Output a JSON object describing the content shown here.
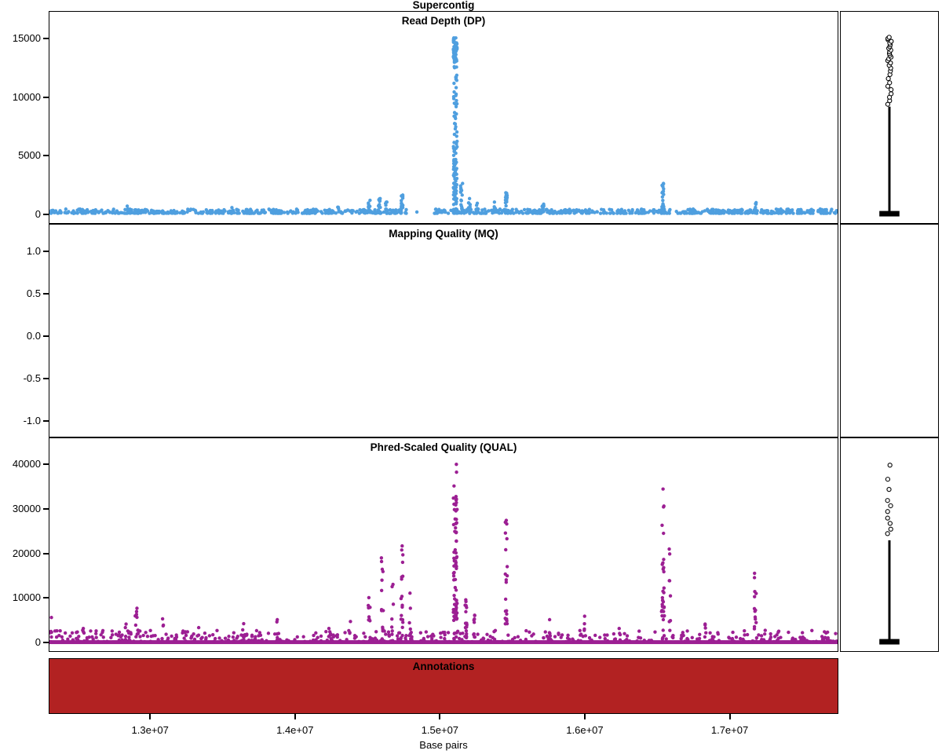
{
  "chart_meta": {
    "main_title": "Supercontig",
    "x_axis_label": "Base pairs",
    "background": "#ffffff"
  },
  "axis": {
    "x": {
      "xlim": [
        12300000,
        17750000
      ],
      "ticks": [
        13000000,
        14000000,
        15000000,
        16000000,
        17000000
      ],
      "tick_labels": [
        "1.3e+07",
        "1.4e+07",
        "1.5e+07",
        "1.6e+07",
        "1.7e+07"
      ]
    }
  },
  "annotations_panel": {
    "title": "Annotations",
    "color": "#b22222"
  },
  "chart_data": [
    {
      "id": "dp",
      "type": "scatter",
      "title": "Read Depth (DP)",
      "color": "#4f9fdf",
      "seed": 11,
      "ylim": [
        0,
        15600
      ],
      "yticks": [
        0,
        5000,
        10000,
        15000
      ],
      "ytick_labels": [
        "0",
        "5000",
        "10000",
        "15000"
      ],
      "baseline": {
        "n": 980,
        "ymin": 30,
        "ymax": 400,
        "gaps": [
          [
            14770000,
            14960000
          ]
        ]
      },
      "peaks": [
        {
          "x": 12842000,
          "ymax": 650,
          "n": 5
        },
        {
          "x": 13560000,
          "ymax": 520,
          "n": 4
        },
        {
          "x": 14294000,
          "ymax": 560,
          "n": 4
        },
        {
          "x": 14510000,
          "ymax": 1150,
          "n": 12
        },
        {
          "x": 14581000,
          "ymax": 1300,
          "n": 13
        },
        {
          "x": 14630000,
          "ymax": 1000,
          "n": 8
        },
        {
          "x": 14738000,
          "ymax": 1600,
          "n": 16
        },
        {
          "x": 15106000,
          "ymax": 15100,
          "n": 170,
          "dense": true,
          "spread": 26000
        },
        {
          "x": 15150000,
          "ymax": 2600,
          "n": 18
        },
        {
          "x": 15204000,
          "ymax": 1300,
          "n": 10
        },
        {
          "x": 15258000,
          "ymax": 900,
          "n": 7
        },
        {
          "x": 15378000,
          "ymax": 1000,
          "n": 8
        },
        {
          "x": 15459000,
          "ymax": 1800,
          "n": 16
        },
        {
          "x": 15713000,
          "ymax": 820,
          "n": 7
        },
        {
          "x": 16542000,
          "ymax": 2600,
          "n": 22
        },
        {
          "x": 17181000,
          "ymax": 950,
          "n": 9
        }
      ],
      "side_strip": {
        "whisker_max": 9200,
        "outliers": [
          9400,
          9700,
          10000,
          10300,
          10650,
          10950,
          11250,
          11600,
          11950,
          12250,
          12500,
          12750,
          12950,
          13150,
          13300,
          13450,
          13600,
          13750,
          13900,
          14050,
          14200,
          14350,
          14500,
          14650,
          14800,
          14950,
          15050,
          15150
        ]
      }
    },
    {
      "id": "mq",
      "type": "scatter",
      "title": "Mapping Quality (MQ)",
      "color": "#000000",
      "seed": 2,
      "ylim": [
        -1.08,
        1.08
      ],
      "yticks": [
        -1.0,
        -0.5,
        0.0,
        0.5,
        1.0
      ],
      "ytick_labels": [
        "-1.0",
        "-0.5",
        "0.0",
        "0.5",
        "1.0"
      ],
      "empty": true,
      "values": [],
      "baseline": null,
      "peaks": [],
      "side_strip": null
    },
    {
      "id": "qual",
      "type": "scatter",
      "title": "Phred-Scaled Quality (QUAL)",
      "color": "#9c1f93",
      "seed": 23,
      "ylim": [
        0,
        41500
      ],
      "yticks": [
        0,
        10000,
        20000,
        30000,
        40000
      ],
      "ytick_labels": [
        "0",
        "10000",
        "20000",
        "30000",
        "40000"
      ],
      "solid_zero_line": true,
      "baseline": {
        "n": 520,
        "ymin": 0,
        "ymax": 2600
      },
      "peaks": [
        {
          "x": 12310000,
          "ymax": 5500,
          "n": 5
        },
        {
          "x": 12533000,
          "ymax": 3000,
          "n": 3
        },
        {
          "x": 12831000,
          "ymax": 4000,
          "n": 3
        },
        {
          "x": 12900000,
          "ymax": 7600,
          "n": 8
        },
        {
          "x": 13086000,
          "ymax": 5200,
          "n": 4
        },
        {
          "x": 13329000,
          "ymax": 3200,
          "n": 3
        },
        {
          "x": 13643000,
          "ymax": 4100,
          "n": 4
        },
        {
          "x": 13871000,
          "ymax": 5000,
          "n": 4
        },
        {
          "x": 14239000,
          "ymax": 3000,
          "n": 3
        },
        {
          "x": 14375000,
          "ymax": 4600,
          "n": 4
        },
        {
          "x": 14510000,
          "ymax": 10000,
          "n": 8
        },
        {
          "x": 14602000,
          "ymax": 19000,
          "n": 12
        },
        {
          "x": 14673000,
          "ymax": 13000,
          "n": 6
        },
        {
          "x": 14738000,
          "ymax": 21700,
          "n": 16
        },
        {
          "x": 14792000,
          "ymax": 11000,
          "n": 5
        },
        {
          "x": 15106000,
          "ymax": 40200,
          "n": 60,
          "spread": 26000
        },
        {
          "x": 15110000,
          "ymax": 31500,
          "n": 10,
          "spread": 12000
        },
        {
          "x": 15180000,
          "ymax": 9500,
          "n": 16
        },
        {
          "x": 15240000,
          "ymax": 6000,
          "n": 8
        },
        {
          "x": 15459000,
          "ymax": 27500,
          "n": 22
        },
        {
          "x": 15756000,
          "ymax": 5000,
          "n": 4
        },
        {
          "x": 16000000,
          "ymax": 5800,
          "n": 4
        },
        {
          "x": 16244000,
          "ymax": 3000,
          "n": 3
        },
        {
          "x": 16542000,
          "ymax": 34600,
          "n": 28,
          "spread": 20000
        },
        {
          "x": 16590000,
          "ymax": 21000,
          "n": 8
        },
        {
          "x": 16840000,
          "ymax": 4000,
          "n": 3
        },
        {
          "x": 17181000,
          "ymax": 15500,
          "n": 13
        }
      ],
      "side_strip": {
        "whisker_max": 23000,
        "outliers": [
          24500,
          25500,
          26800,
          28000,
          29500,
          30800,
          32000,
          34500,
          36800,
          40000
        ]
      }
    }
  ]
}
